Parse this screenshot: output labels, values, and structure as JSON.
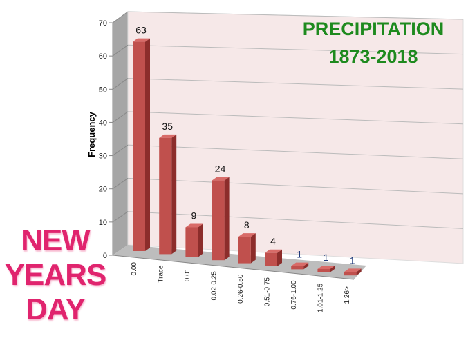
{
  "chart_data": {
    "type": "bar",
    "title": [
      "PRECIPITATION",
      "1873-2018"
    ],
    "side_text": [
      "NEW",
      "YEARS",
      "DAY"
    ],
    "ylabel": "Frequency",
    "xlabel": "",
    "ylim": [
      0,
      70
    ],
    "yticks": [
      "0",
      "10",
      "20",
      "30",
      "40",
      "50",
      "60",
      "70"
    ],
    "categories": [
      "0.00",
      "Trace",
      "0.01",
      "0.02-0.25",
      "0.26-0.50",
      "0.51-0.75",
      "0.76-1.00",
      "1.01-1.25",
      "1.26>"
    ],
    "values": [
      63,
      35,
      9,
      24,
      8,
      4,
      1,
      1,
      1
    ],
    "data_labels": [
      "63",
      "35",
      "9",
      "24",
      "8",
      "4",
      "1",
      "1",
      "1"
    ],
    "grid": true,
    "three_d": true,
    "colors": {
      "bar_front": "#c0504d",
      "bar_side": "#8c2d2b",
      "bar_top": "#d86b68",
      "wall": "#f6e8e8",
      "side_wall": "#a6a6a6",
      "floor": "#bdbdbd",
      "title": "#1e8a1e",
      "side_text": "#e0246e"
    }
  }
}
